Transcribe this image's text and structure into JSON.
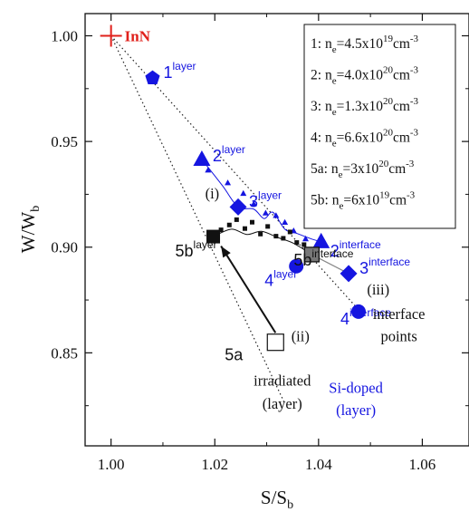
{
  "chart_data": {
    "type": "scatter",
    "xlabel": "S/S",
    "xlabel_sub": "b",
    "ylabel": "W/W",
    "ylabel_sub": "b",
    "xlim": [
      0.995,
      1.069
    ],
    "ylim": [
      0.806,
      1.0105
    ],
    "x_ticks": [
      {
        "value": 1.0,
        "label": "1.00"
      },
      {
        "value": 1.02,
        "label": "1.02"
      },
      {
        "value": 1.04,
        "label": "1.04"
      },
      {
        "value": 1.06,
        "label": "1.06"
      }
    ],
    "y_ticks": [
      {
        "value": 0.85,
        "label": "0.85"
      },
      {
        "value": 0.9,
        "label": "0.90"
      },
      {
        "value": 0.95,
        "label": "0.95"
      },
      {
        "value": 1.0,
        "label": "1.00"
      }
    ],
    "reference_point": {
      "label": "InN",
      "x": 1.0,
      "y": 1.0,
      "color": "#e0201b"
    },
    "legend": [
      {
        "key": "1:",
        "pre": "n",
        "sub": "e",
        "mid": "=4.5x10",
        "sup": "19",
        "unit": "cm",
        "unit_sup": "-3"
      },
      {
        "key": "2:",
        "pre": "n",
        "sub": "e",
        "mid": "=4.0x10",
        "sup": "20",
        "unit": "cm",
        "unit_sup": "-3"
      },
      {
        "key": "3:",
        "pre": "n",
        "sub": "e",
        "mid": "=1.3x10",
        "sup": "20",
        "unit": "cm",
        "unit_sup": "-3"
      },
      {
        "key": "4:",
        "pre": "n",
        "sub": "e",
        "mid": "=6.6x10",
        "sup": "20",
        "unit": "cm",
        "unit_sup": "-3"
      },
      {
        "key": "5a:",
        "pre": "n",
        "sub": "e",
        "mid": "=3x10",
        "sup": "20",
        "unit": "cm",
        "unit_sup": "-3"
      },
      {
        "key": "5b:",
        "pre": "n",
        "sub": "e",
        "mid": "=6x10",
        "sup": "19",
        "unit": "cm",
        "unit_sup": "-3"
      }
    ],
    "points": [
      {
        "id": "1-layer",
        "x": 1.008,
        "y": 0.98,
        "shape": "pentagon",
        "color": "#1515e0",
        "label": "1",
        "sup": "layer"
      },
      {
        "id": "2-layer",
        "x": 1.0175,
        "y": 0.9415,
        "shape": "triangle",
        "color": "#1515e0",
        "label": "2",
        "sup": "layer"
      },
      {
        "id": "3-layer",
        "x": 1.0245,
        "y": 0.919,
        "shape": "diamond",
        "color": "#1515e0",
        "label": "3",
        "sup": "layer"
      },
      {
        "id": "4-layer",
        "x": 1.0357,
        "y": 0.891,
        "shape": "circle",
        "color": "#1515e0",
        "label": "4",
        "sup": "layer"
      },
      {
        "id": "2-interface",
        "x": 1.0405,
        "y": 0.9025,
        "shape": "triangle",
        "color": "#1515e0",
        "label": "2",
        "sup": "interface"
      },
      {
        "id": "3-interface",
        "x": 1.0458,
        "y": 0.8875,
        "shape": "diamond",
        "color": "#1515e0",
        "label": "3",
        "sup": "interface"
      },
      {
        "id": "4-interface",
        "x": 1.0477,
        "y": 0.8695,
        "shape": "circle",
        "color": "#1515e0",
        "label": "4",
        "sup": "interface"
      },
      {
        "id": "5a",
        "x": 1.0317,
        "y": 0.855,
        "shape": "square-open",
        "color": "#111111",
        "label": "5a",
        "sup": ""
      },
      {
        "id": "5b-layer",
        "x": 1.0197,
        "y": 0.905,
        "shape": "square",
        "color": "#111111",
        "label": "5b",
        "sup": "layer"
      },
      {
        "id": "5b-interface",
        "x": 1.0387,
        "y": 0.8965,
        "shape": "square-gray",
        "color": "#777777",
        "label": "5b",
        "sup": "interface"
      }
    ],
    "blue_small_triangles": [
      {
        "x": 1.0187,
        "y": 0.9365
      },
      {
        "x": 1.0225,
        "y": 0.9305
      },
      {
        "x": 1.0255,
        "y": 0.9255
      },
      {
        "x": 1.0275,
        "y": 0.9205
      },
      {
        "x": 1.0298,
        "y": 0.9162
      },
      {
        "x": 1.0318,
        "y": 0.915
      },
      {
        "x": 1.0335,
        "y": 0.9118
      },
      {
        "x": 1.0352,
        "y": 0.9078
      },
      {
        "x": 1.0375,
        "y": 0.904
      }
    ],
    "black_small_squares": [
      {
        "x": 1.0212,
        "y": 0.9082
      },
      {
        "x": 1.0228,
        "y": 0.9105
      },
      {
        "x": 1.0242,
        "y": 0.913
      },
      {
        "x": 1.0258,
        "y": 0.9088
      },
      {
        "x": 1.0272,
        "y": 0.9118
      },
      {
        "x": 1.0288,
        "y": 0.9062
      },
      {
        "x": 1.0302,
        "y": 0.9098
      },
      {
        "x": 1.0318,
        "y": 0.9052
      },
      {
        "x": 1.0332,
        "y": 0.9042
      },
      {
        "x": 1.0345,
        "y": 0.9072
      },
      {
        "x": 1.0358,
        "y": 0.9022
      },
      {
        "x": 1.0372,
        "y": 0.9012
      }
    ],
    "blue_curve": [
      {
        "x": 1.0175,
        "y": 0.9415
      },
      {
        "x": 1.0215,
        "y": 0.929
      },
      {
        "x": 1.0245,
        "y": 0.919
      },
      {
        "x": 1.0275,
        "y": 0.918
      },
      {
        "x": 1.0295,
        "y": 0.9135
      },
      {
        "x": 1.0312,
        "y": 0.9165
      },
      {
        "x": 1.0335,
        "y": 0.9085
      },
      {
        "x": 1.0358,
        "y": 0.9065
      },
      {
        "x": 1.0385,
        "y": 0.904
      },
      {
        "x": 1.0405,
        "y": 0.9025
      }
    ],
    "black_curve": [
      {
        "x": 1.0197,
        "y": 0.905
      },
      {
        "x": 1.0232,
        "y": 0.9085
      },
      {
        "x": 1.0262,
        "y": 0.906
      },
      {
        "x": 1.029,
        "y": 0.9075
      },
      {
        "x": 1.0322,
        "y": 0.9045
      },
      {
        "x": 1.0352,
        "y": 0.9018
      },
      {
        "x": 1.0387,
        "y": 0.8965
      }
    ],
    "gray_line": [
      {
        "x": 1.0387,
        "y": 0.8965
      },
      {
        "x": 1.0458,
        "y": 0.8875
      }
    ],
    "dotted_lines": [
      {
        "from": {
          "x": 1.0,
          "y": 1.0
        },
        "to": {
          "x": 1.0335,
          "y": 0.826
        }
      },
      {
        "from": {
          "x": 1.0,
          "y": 1.0
        },
        "to": {
          "x": 1.0475,
          "y": 0.871
        }
      }
    ],
    "arrow": {
      "from": {
        "x": 1.0317,
        "y": 0.8595
      },
      "to": {
        "x": 1.0212,
        "y": 0.9005
      }
    },
    "annotations": [
      {
        "id": "i",
        "text": "(i)",
        "x": 1.0195,
        "y": 0.923,
        "color": "#111111"
      },
      {
        "id": "ii",
        "text": "(ii)",
        "x": 1.0365,
        "y": 0.8555,
        "color": "#111111"
      },
      {
        "id": "iii",
        "text": "(iii)",
        "x": 1.0515,
        "y": 0.8775,
        "color": "#111111"
      },
      {
        "id": "interface-points-1",
        "text": "interface",
        "x": 1.0555,
        "y": 0.866,
        "color": "#111111"
      },
      {
        "id": "interface-points-2",
        "text": "points",
        "x": 1.0555,
        "y": 0.8555,
        "color": "#111111"
      },
      {
        "id": "irradiated-1",
        "text": "irradiated",
        "x": 1.033,
        "y": 0.8345,
        "color": "#111111"
      },
      {
        "id": "irradiated-2",
        "text": "(layer)",
        "x": 1.033,
        "y": 0.8235,
        "color": "#111111"
      },
      {
        "id": "si-doped-1",
        "text": "Si-doped",
        "x": 1.0472,
        "y": 0.831,
        "color": "#1515e0"
      },
      {
        "id": "si-doped-2",
        "text": "(layer)",
        "x": 1.0472,
        "y": 0.8205,
        "color": "#1515e0"
      }
    ],
    "grid": false,
    "legend_position": "top-right"
  }
}
